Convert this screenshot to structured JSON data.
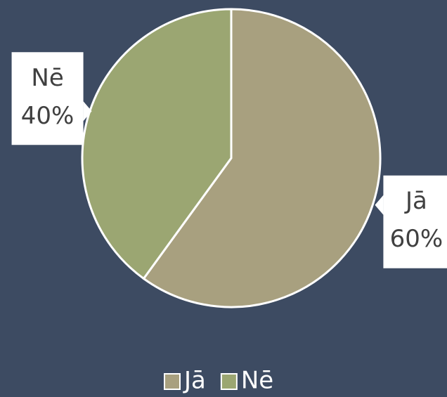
{
  "chart_data": {
    "type": "pie",
    "categories": [
      "Jā",
      "Nē"
    ],
    "values": [
      60,
      40
    ],
    "value_labels": [
      "60%",
      "40%"
    ],
    "colors": [
      "#a8a07f",
      "#9ba672"
    ],
    "legend": "bottom"
  }
}
